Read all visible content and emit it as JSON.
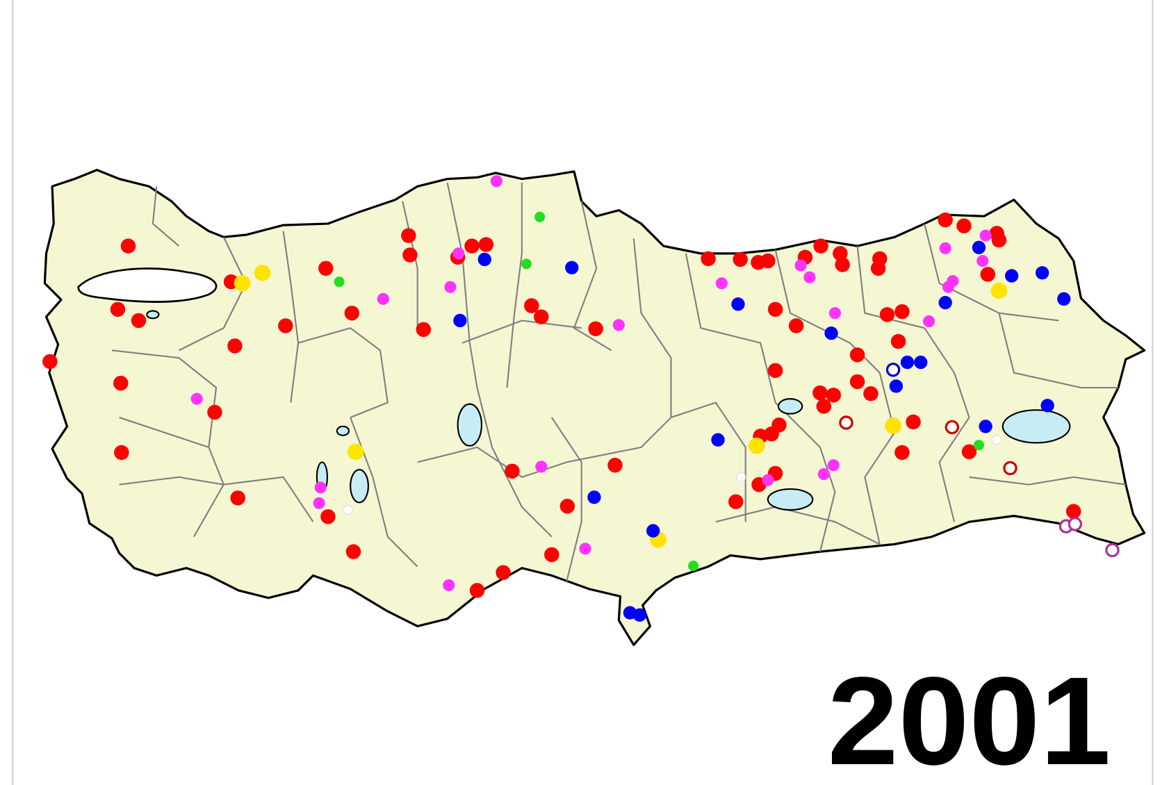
{
  "map": {
    "year_label": "2001",
    "land_color": "#f4f7d2",
    "lake_color": "#c8ecf4",
    "border_color": "#000000",
    "province_border_color": "#808080",
    "marker_colors": {
      "red": "#ff0000",
      "blue": "#0000ff",
      "magenta": "#ff33ff",
      "yellow": "#ffe400",
      "green": "#22dd22",
      "hollow_red": "#cc0000",
      "hollow_blue": "#0000cc",
      "hollow_purple": "#aa3399"
    }
  }
}
